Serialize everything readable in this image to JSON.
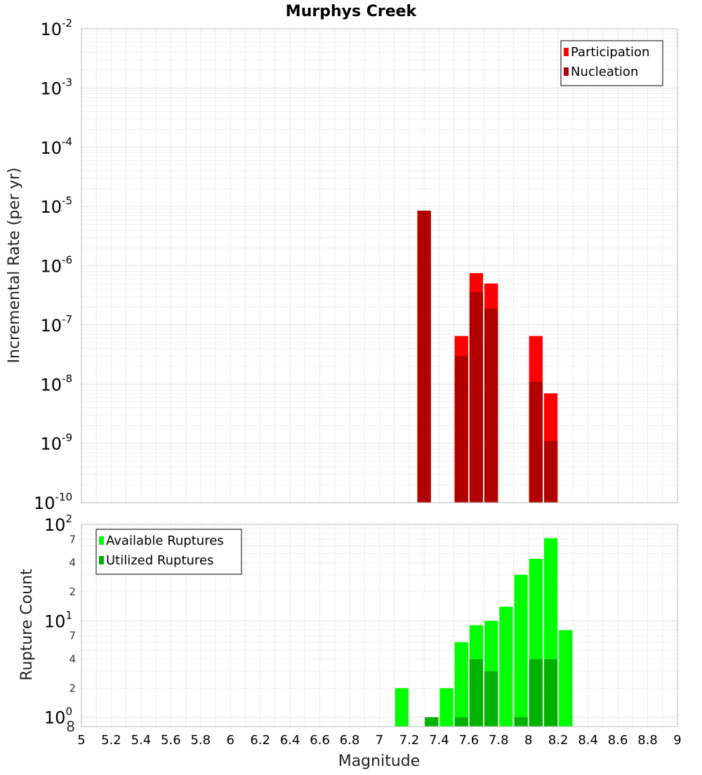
{
  "chart_data": {
    "title": "Murphys Creek",
    "xlabel": "Magnitude",
    "x_ticks": [
      "5",
      "5.2",
      "5.4",
      "5.6",
      "5.8",
      "6",
      "6.2",
      "6.4",
      "6.6",
      "6.8",
      "7",
      "7.2",
      "7.4",
      "7.6",
      "7.8",
      "8",
      "8.2",
      "8.4",
      "8.6",
      "8.8",
      "9"
    ],
    "xlim": [
      5,
      9
    ],
    "bin_width": 0.1,
    "panels": [
      {
        "type": "bar",
        "scale": "log",
        "ylabel": "Incremental Rate (per yr)",
        "ylim": [
          1e-10,
          0.01
        ],
        "y_ticks": [
          {
            "base": "10",
            "exp": "-2"
          },
          {
            "base": "10",
            "exp": "-3"
          },
          {
            "base": "10",
            "exp": "-4"
          },
          {
            "base": "10",
            "exp": "-5"
          },
          {
            "base": "10",
            "exp": "-6"
          },
          {
            "base": "10",
            "exp": "-7"
          },
          {
            "base": "10",
            "exp": "-8"
          },
          {
            "base": "10",
            "exp": "-9"
          },
          {
            "base": "10",
            "exp": "-10"
          }
        ],
        "legend": "top-right",
        "series": [
          {
            "name": "Participation",
            "color": "#ff0000",
            "points": [
              [
                7.3,
                8.5e-06
              ],
              [
                7.55,
                6.5e-08
              ],
              [
                7.65,
                7.5e-07
              ],
              [
                7.75,
                5e-07
              ],
              [
                8.05,
                6.5e-08
              ],
              [
                8.15,
                7e-09
              ]
            ]
          },
          {
            "name": "Nucleation",
            "color": "#b20000",
            "points": [
              [
                7.3,
                8.5e-06
              ],
              [
                7.55,
                3e-08
              ],
              [
                7.65,
                3.6e-07
              ],
              [
                7.75,
                1.9e-07
              ],
              [
                8.05,
                1.1e-08
              ],
              [
                8.15,
                1.1e-09
              ]
            ]
          }
        ]
      },
      {
        "type": "bar",
        "scale": "log",
        "ylabel": "Rupture Count",
        "ylim": [
          0.8,
          100
        ],
        "y_major_ticks": [
          {
            "base": "10",
            "exp": "2"
          },
          {
            "base": "10",
            "exp": "1"
          },
          {
            "base": "10",
            "exp": "0"
          }
        ],
        "y_minor_ticks": [
          "7",
          "4",
          "2",
          "7",
          "4",
          "2",
          "8"
        ],
        "legend": "top-left",
        "series": [
          {
            "name": "Available Ruptures",
            "color": "#00ff00",
            "points": [
              [
                7.15,
                2
              ],
              [
                7.45,
                2
              ],
              [
                7.55,
                6
              ],
              [
                7.65,
                9
              ],
              [
                7.75,
                10
              ],
              [
                7.85,
                14
              ],
              [
                7.95,
                30
              ],
              [
                8.05,
                44
              ],
              [
                8.15,
                72
              ],
              [
                8.25,
                8
              ]
            ]
          },
          {
            "name": "Utilized Ruptures",
            "color": "#00b200",
            "points": [
              [
                7.35,
                1
              ],
              [
                7.55,
                1
              ],
              [
                7.65,
                4
              ],
              [
                7.75,
                3
              ],
              [
                7.95,
                1
              ],
              [
                8.05,
                4
              ],
              [
                8.15,
                4
              ]
            ]
          }
        ]
      }
    ]
  }
}
